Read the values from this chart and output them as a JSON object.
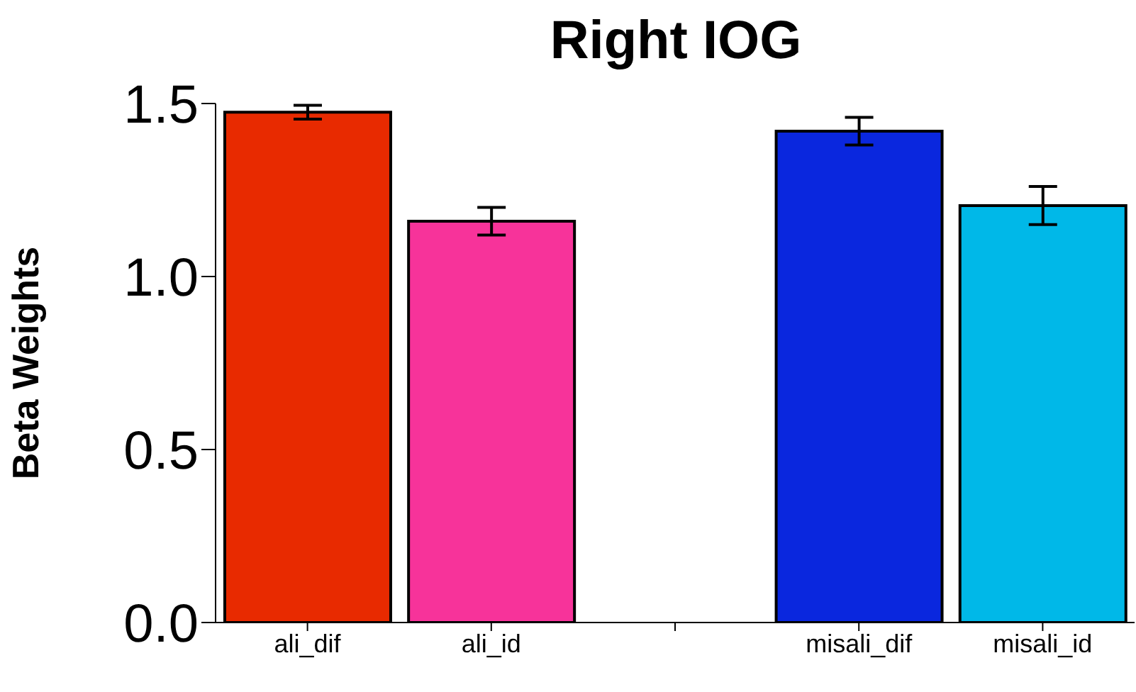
{
  "chart_data": {
    "type": "bar",
    "title": "Right IOG",
    "ylabel": "Beta Weights",
    "categories": [
      "ali_dif",
      "ali_id",
      null,
      "misali_dif",
      "misali_id"
    ],
    "values": [
      1.475,
      1.16,
      null,
      1.42,
      1.205
    ],
    "errors": [
      0.02,
      0.04,
      null,
      0.04,
      0.055
    ],
    "colors": [
      "#e82a00",
      "#f7339a",
      "#ffffff",
      "#0a27de",
      "#00b8e8"
    ],
    "ylim": [
      0,
      1.5
    ],
    "yticks": [
      {
        "value": 0,
        "label": "0.0"
      },
      {
        "value": 0.5,
        "label": "0.5"
      },
      {
        "value": 1,
        "label": "1.0"
      },
      {
        "value": 1.5,
        "label": "1.5"
      }
    ],
    "grid": false,
    "legend": false
  }
}
